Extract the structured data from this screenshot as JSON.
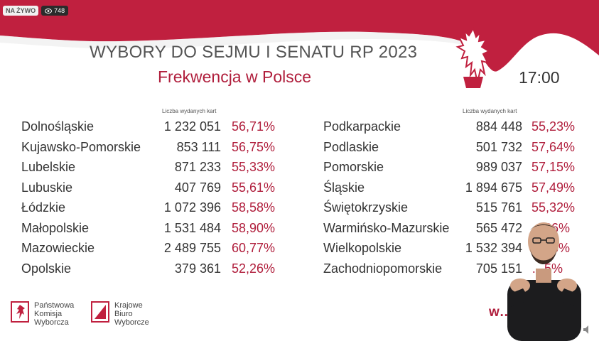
{
  "stream": {
    "live_label": "NA ŻYWO",
    "viewers": "748"
  },
  "header": {
    "title": "WYBORY DO SEJMU I SENATU RP 2023",
    "subtitle": "Frekwencja w Polsce",
    "time": "17:00"
  },
  "left_column": {
    "header": "Liczba wydanych kart",
    "rows": [
      {
        "name": "Dolnośląskie",
        "count": "1 232 051",
        "pct": "56,71%"
      },
      {
        "name": "Kujawsko-Pomorskie",
        "count": "853 111",
        "pct": "56,75%"
      },
      {
        "name": "Lubelskie",
        "count": "871 233",
        "pct": "55,33%"
      },
      {
        "name": "Lubuskie",
        "count": "407 769",
        "pct": "55,61%"
      },
      {
        "name": "Łódzkie",
        "count": "1 072 396",
        "pct": "58,58%"
      },
      {
        "name": "Małopolskie",
        "count": "1 531 484",
        "pct": "58,90%"
      },
      {
        "name": "Mazowieckie",
        "count": "2 489 755",
        "pct": "60,77%"
      },
      {
        "name": "Opolskie",
        "count": "379 361",
        "pct": "52,26%"
      }
    ]
  },
  "right_column": {
    "header": "Liczba wydanych kart",
    "rows": [
      {
        "name": "Podkarpackie",
        "count": "884 448",
        "pct": "55,23%"
      },
      {
        "name": "Podlaskie",
        "count": "501 732",
        "pct": "57,64%"
      },
      {
        "name": "Pomorskie",
        "count": "989 037",
        "pct": "57,15%"
      },
      {
        "name": "Śląskie",
        "count": "1 894 675",
        "pct": "57,49%"
      },
      {
        "name": "Świętokrzyskie",
        "count": "515 761",
        "pct": "55,32%"
      },
      {
        "name": "Warmińsko-Mazurskie",
        "count": "565 472",
        "pct": "…86%"
      },
      {
        "name": "Wielkopolskie",
        "count": "1 532 394",
        "pct": "…48%"
      },
      {
        "name": "Zachodniopomorskie",
        "count": "705 151",
        "pct": "…5%"
      }
    ]
  },
  "logos": {
    "pkw": {
      "line1": "Państwowa",
      "line2": "Komisja",
      "line3": "Wyborcza"
    },
    "kbw": {
      "line1": "Krajowe",
      "line2": "Biuro",
      "line3": "Wyborcze"
    }
  },
  "website": "w…",
  "colors": {
    "accent": "#b01e3c",
    "text": "#333333",
    "badge_dark": "#2b2b2b"
  }
}
